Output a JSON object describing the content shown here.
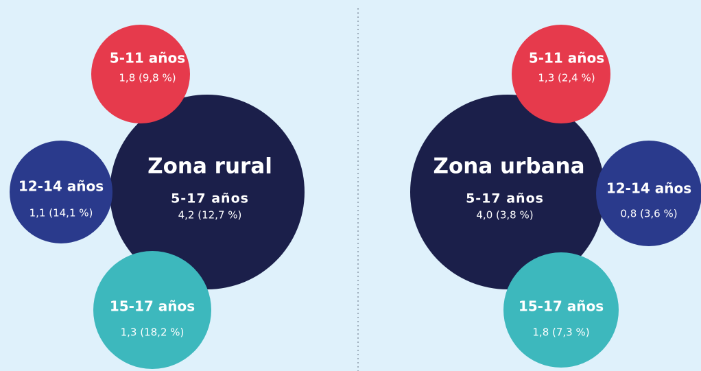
{
  "groups": [
    {
      "title": "Zona rural",
      "main": {
        "label": "5-17 años",
        "value": "4,2 (12,7 %)"
      },
      "segments": [
        {
          "label": "5-11 años",
          "value": "1,8 (9,8 %)"
        },
        {
          "label": "12-14 años",
          "value": "1,1 (14,1 %)"
        },
        {
          "label": "15-17 años",
          "value": "1,3 (18,2 %)"
        }
      ]
    },
    {
      "title": "Zona urbana",
      "main": {
        "label": "5-17 años",
        "value": "4,0 (3,8 %)"
      },
      "segments": [
        {
          "label": "5-11 años",
          "value": "1,3 (2,4 %)"
        },
        {
          "label": "12-14 años",
          "value": "0,8 (3,6 %)"
        },
        {
          "label": "15-17 años",
          "value": "1,8 (7,3 %)"
        }
      ]
    }
  ]
}
